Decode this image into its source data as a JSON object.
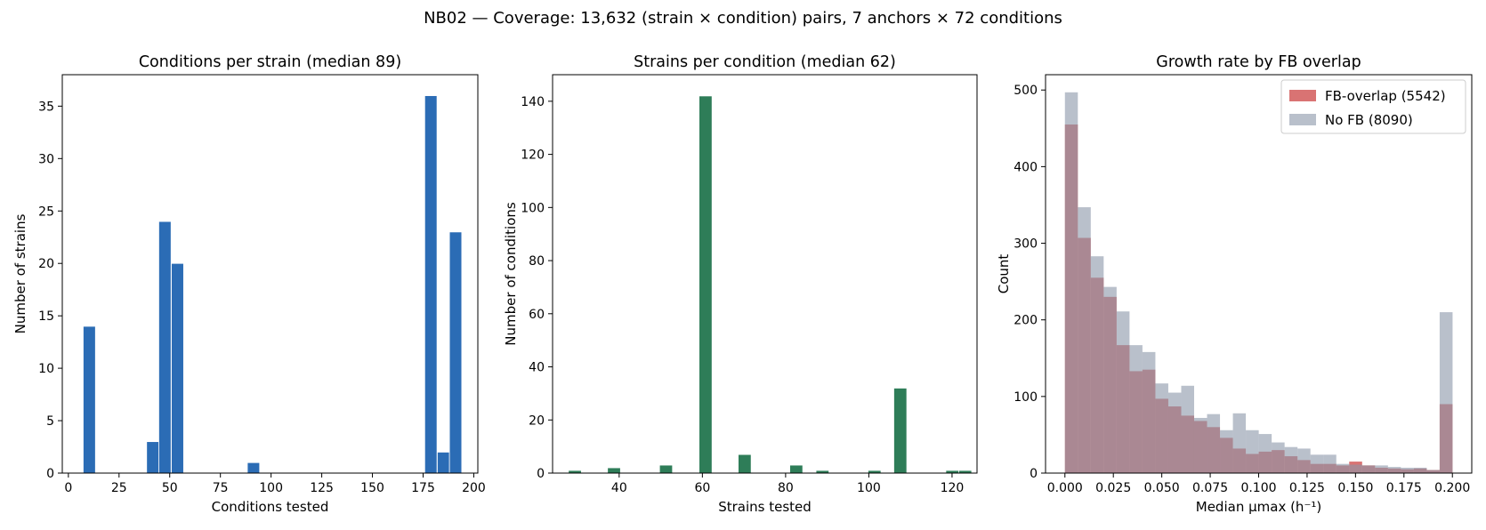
{
  "suptitle": "NB02 — Coverage: 13,632 (strain × condition) pairs, 7 anchors × 72 conditions",
  "chart_data": [
    {
      "type": "bar",
      "title": "Conditions per strain (median 89)",
      "xlabel": "Conditions tested",
      "ylabel": "Number of strains",
      "color": "#2b6cb5",
      "xlim": [
        -3,
        202
      ],
      "ylim": [
        0,
        38
      ],
      "xticks": [
        0,
        25,
        50,
        75,
        100,
        125,
        150,
        175,
        200
      ],
      "yticks": [
        0,
        5,
        10,
        15,
        20,
        25,
        30,
        35
      ],
      "grid": false,
      "bin_width": 6.06,
      "bins": [
        {
          "left": 7.3,
          "value": 14
        },
        {
          "left": 38.6,
          "value": 3
        },
        {
          "left": 44.6,
          "value": 24
        },
        {
          "left": 50.8,
          "value": 20
        },
        {
          "left": 88.3,
          "value": 1
        },
        {
          "left": 175.8,
          "value": 36
        },
        {
          "left": 182.0,
          "value": 2
        },
        {
          "left": 188.0,
          "value": 23
        }
      ]
    },
    {
      "type": "bar",
      "title": "Strains per condition (median 62)",
      "xlabel": "Strains tested",
      "ylabel": "Number of conditions",
      "color": "#2e7d58",
      "xlim": [
        24,
        126
      ],
      "ylim": [
        0,
        150
      ],
      "xticks": [
        40,
        60,
        80,
        100,
        120
      ],
      "yticks": [
        0,
        20,
        40,
        60,
        80,
        100,
        120,
        140
      ],
      "grid": false,
      "bin_width": 3.12,
      "bins": [
        {
          "left": 27.8,
          "value": 1
        },
        {
          "left": 37.2,
          "value": 2
        },
        {
          "left": 49.7,
          "value": 3
        },
        {
          "left": 59.2,
          "value": 142
        },
        {
          "left": 68.6,
          "value": 7
        },
        {
          "left": 81.0,
          "value": 3
        },
        {
          "left": 87.3,
          "value": 1
        },
        {
          "left": 99.8,
          "value": 1
        },
        {
          "left": 106.0,
          "value": 32
        },
        {
          "left": 118.5,
          "value": 1
        },
        {
          "left": 121.6,
          "value": 1
        }
      ]
    },
    {
      "type": "bar",
      "title": "Growth rate by FB overlap",
      "xlabel": "Median μmax (h⁻¹)",
      "ylabel": "Count",
      "xlim": [
        -0.01,
        0.21
      ],
      "ylim": [
        0,
        520
      ],
      "xticks": [
        "0.000",
        "0.025",
        "0.050",
        "0.075",
        "0.100",
        "0.125",
        "0.150",
        "0.175",
        "0.200"
      ],
      "yticks": [
        0,
        100,
        200,
        300,
        400,
        500
      ],
      "grid": false,
      "legend_position": "top-right",
      "x_start": 0.0,
      "bin_width": 0.00667,
      "series": [
        {
          "name": "FB-overlap (5542)",
          "color": "#cc4444",
          "opacity": 0.75,
          "values": [
            455,
            307,
            255,
            230,
            167,
            133,
            135,
            97,
            87,
            75,
            68,
            60,
            46,
            32,
            25,
            28,
            30,
            22,
            17,
            12,
            12,
            10,
            15,
            10,
            7,
            6,
            5,
            6,
            4,
            90
          ]
        },
        {
          "name": "No FB (8090)",
          "color": "#8a96a8",
          "opacity": 0.6,
          "values": [
            497,
            347,
            283,
            243,
            211,
            167,
            158,
            117,
            105,
            114,
            72,
            77,
            56,
            78,
            56,
            51,
            40,
            34,
            32,
            24,
            24,
            12,
            11,
            10,
            10,
            8,
            7,
            7,
            4,
            210
          ]
        }
      ]
    }
  ]
}
